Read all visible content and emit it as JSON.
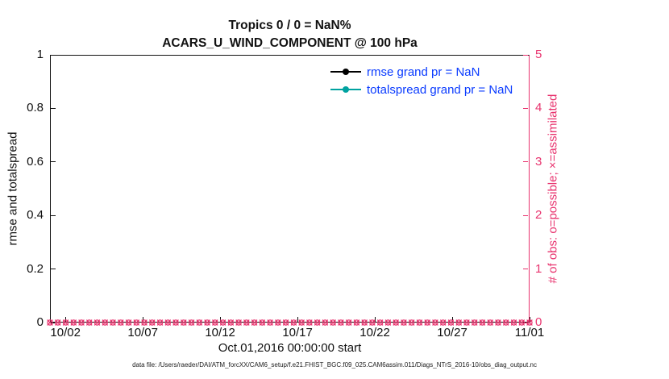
{
  "colors": {
    "pink": "#e8336e",
    "blue": "#0a3bff",
    "teal": "#00a2a0",
    "black": "#000000"
  },
  "title": {
    "line1": "Tropics 0 / 0 = NaN%",
    "line2": "ACARS_U_WIND_COMPONENT @ 100 hPa"
  },
  "legend": {
    "items": [
      {
        "label": "rmse grand pr = NaN",
        "color": "#000000"
      },
      {
        "label": "totalspread grand pr = NaN",
        "color": "#00a2a0"
      }
    ]
  },
  "footer": "data file: /Users/raeder/DAI/ATM_forcXX/CAM6_setup/f.e21.FHIST_BGC.f09_025.CAM6assim.011/Diags_NTrS_2016-10/obs_diag_output.nc",
  "chart_data": {
    "type": "line",
    "title": "Tropics 0 / 0 = NaN%",
    "subtitle": "ACARS_U_WIND_COMPONENT @ 100 hPa",
    "grid": false,
    "legend_position": "top-right-inside",
    "left_axis": {
      "label": "rmse and totalspread",
      "min": 0,
      "max": 1,
      "ticks": [
        "0",
        "0.2",
        "0.4",
        "0.6",
        "0.8",
        "1"
      ]
    },
    "right_axis": {
      "label": "# of obs: o=possible; ×=assimilated",
      "min": 0,
      "max": 5,
      "ticks": [
        "0",
        "1",
        "2",
        "3",
        "4",
        "5"
      ]
    },
    "x_axis": {
      "label": "Oct.01,2016 00:00:00 start",
      "day_min": 0,
      "day_max": 31,
      "ticks": [
        {
          "day": 1,
          "label": "10/02"
        },
        {
          "day": 6,
          "label": "10/07"
        },
        {
          "day": 11,
          "label": "10/12"
        },
        {
          "day": 16,
          "label": "10/17"
        },
        {
          "day": 21,
          "label": "10/22"
        },
        {
          "day": 26,
          "label": "10/27"
        },
        {
          "day": 31,
          "label": "11/01"
        }
      ]
    },
    "series": [
      {
        "name": "rmse grand pr = NaN",
        "color": "#000000",
        "values": []
      },
      {
        "name": "totalspread grand pr = NaN",
        "color": "#00a2a0",
        "values": []
      }
    ],
    "obs_counts": {
      "possible_value": 0,
      "assimilated_value": 0,
      "marker_count": 62,
      "color": "#e8336e",
      "axis": "right",
      "glyphs": [
        "o",
        "×"
      ]
    }
  }
}
